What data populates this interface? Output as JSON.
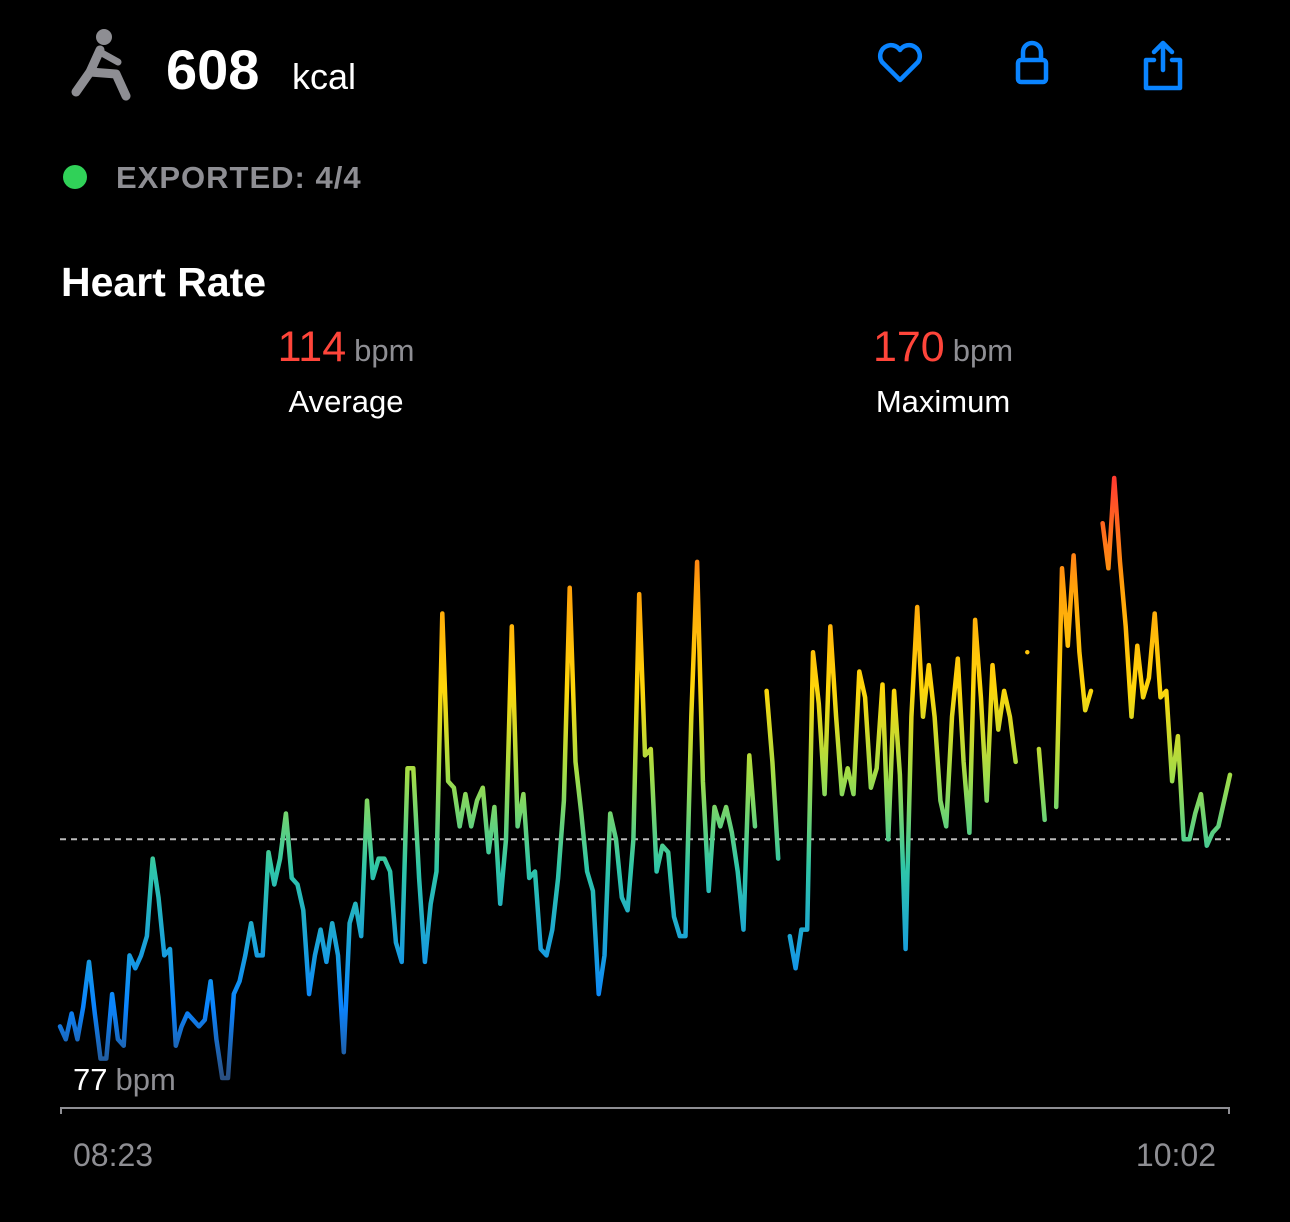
{
  "header": {
    "calories": "608",
    "calories_unit": "kcal"
  },
  "status": {
    "text": "EXPORTED: 4/4"
  },
  "heart_rate": {
    "title": "Heart Rate",
    "average": {
      "value": 114,
      "unit": "bpm",
      "label": "Average"
    },
    "maximum": {
      "value": 170,
      "unit": "bpm",
      "label": "Maximum"
    },
    "minimum": {
      "value": 77,
      "unit": "bpm"
    },
    "start_time": "08:23",
    "end_time": "10:02",
    "values": [
      85,
      83,
      87,
      83,
      88,
      95,
      87,
      80,
      80,
      90,
      83,
      82,
      96,
      94,
      96,
      99,
      111,
      105,
      96,
      97,
      82,
      85,
      87,
      86,
      85,
      86,
      92,
      83,
      77,
      77,
      90,
      92,
      96,
      101,
      96,
      96,
      112,
      107,
      111,
      118,
      108,
      107,
      103,
      90,
      96,
      100,
      95,
      101,
      96,
      81,
      101,
      104,
      99,
      120,
      108,
      111,
      111,
      109,
      98,
      95,
      125,
      125,
      108,
      95,
      104,
      109,
      149,
      123,
      122,
      116,
      121,
      116,
      120,
      122,
      112,
      119,
      104,
      114,
      147,
      116,
      121,
      108,
      109,
      97,
      96,
      100,
      108,
      120,
      153,
      126,
      118,
      109,
      106,
      90,
      96,
      118,
      114,
      105,
      103,
      114,
      152,
      127,
      128,
      109,
      113,
      112,
      102,
      99,
      99,
      133,
      157,
      123,
      106,
      119,
      116,
      119,
      115,
      109,
      100,
      127,
      116,
      null,
      137,
      126,
      111,
      null,
      99,
      94,
      100,
      100,
      143,
      135,
      121,
      147,
      133,
      121,
      125,
      121,
      140,
      136,
      122,
      125,
      138,
      114,
      137,
      124,
      97,
      133,
      150,
      133,
      141,
      133,
      120,
      116,
      133,
      142,
      126,
      115,
      148,
      136,
      120,
      141,
      131,
      137,
      133,
      126,
      null,
      143,
      null,
      128,
      117,
      null,
      119,
      156,
      144,
      158,
      143,
      134,
      137,
      null,
      163,
      156,
      170,
      157,
      147,
      133,
      144,
      136,
      139,
      149,
      136,
      137,
      123,
      130,
      114,
      114,
      118,
      121,
      113,
      115,
      116,
      120,
      124
    ]
  }
}
